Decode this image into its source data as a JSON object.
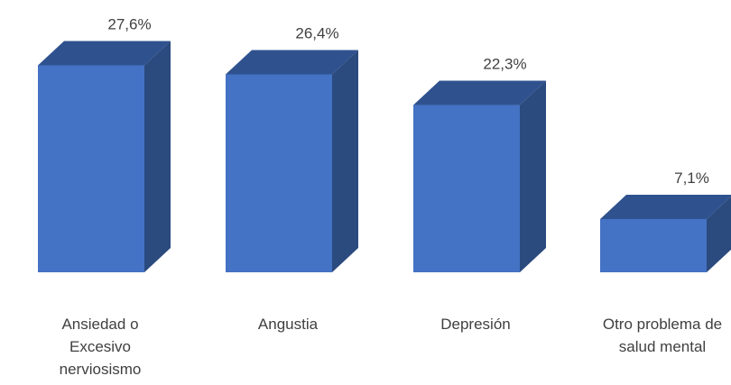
{
  "chart_data": {
    "type": "bar",
    "style": "3d-column",
    "categories": [
      [
        "Ansiedad o",
        "Excesivo",
        "nerviosismo"
      ],
      [
        "Angustia"
      ],
      [
        "Depresión"
      ],
      [
        "Otro problema de",
        "salud mental"
      ]
    ],
    "values": [
      27.6,
      26.4,
      22.3,
      7.1
    ],
    "value_labels": [
      "27,6%",
      "26,4%",
      "22,3%",
      "7,1%"
    ],
    "unit": "%",
    "ylim": [
      0,
      30
    ],
    "grid": false,
    "legend": "none",
    "colors": {
      "front": "#4472C4",
      "top": "#2F528F",
      "side": "#2B4A7E",
      "text": "#404040"
    }
  }
}
